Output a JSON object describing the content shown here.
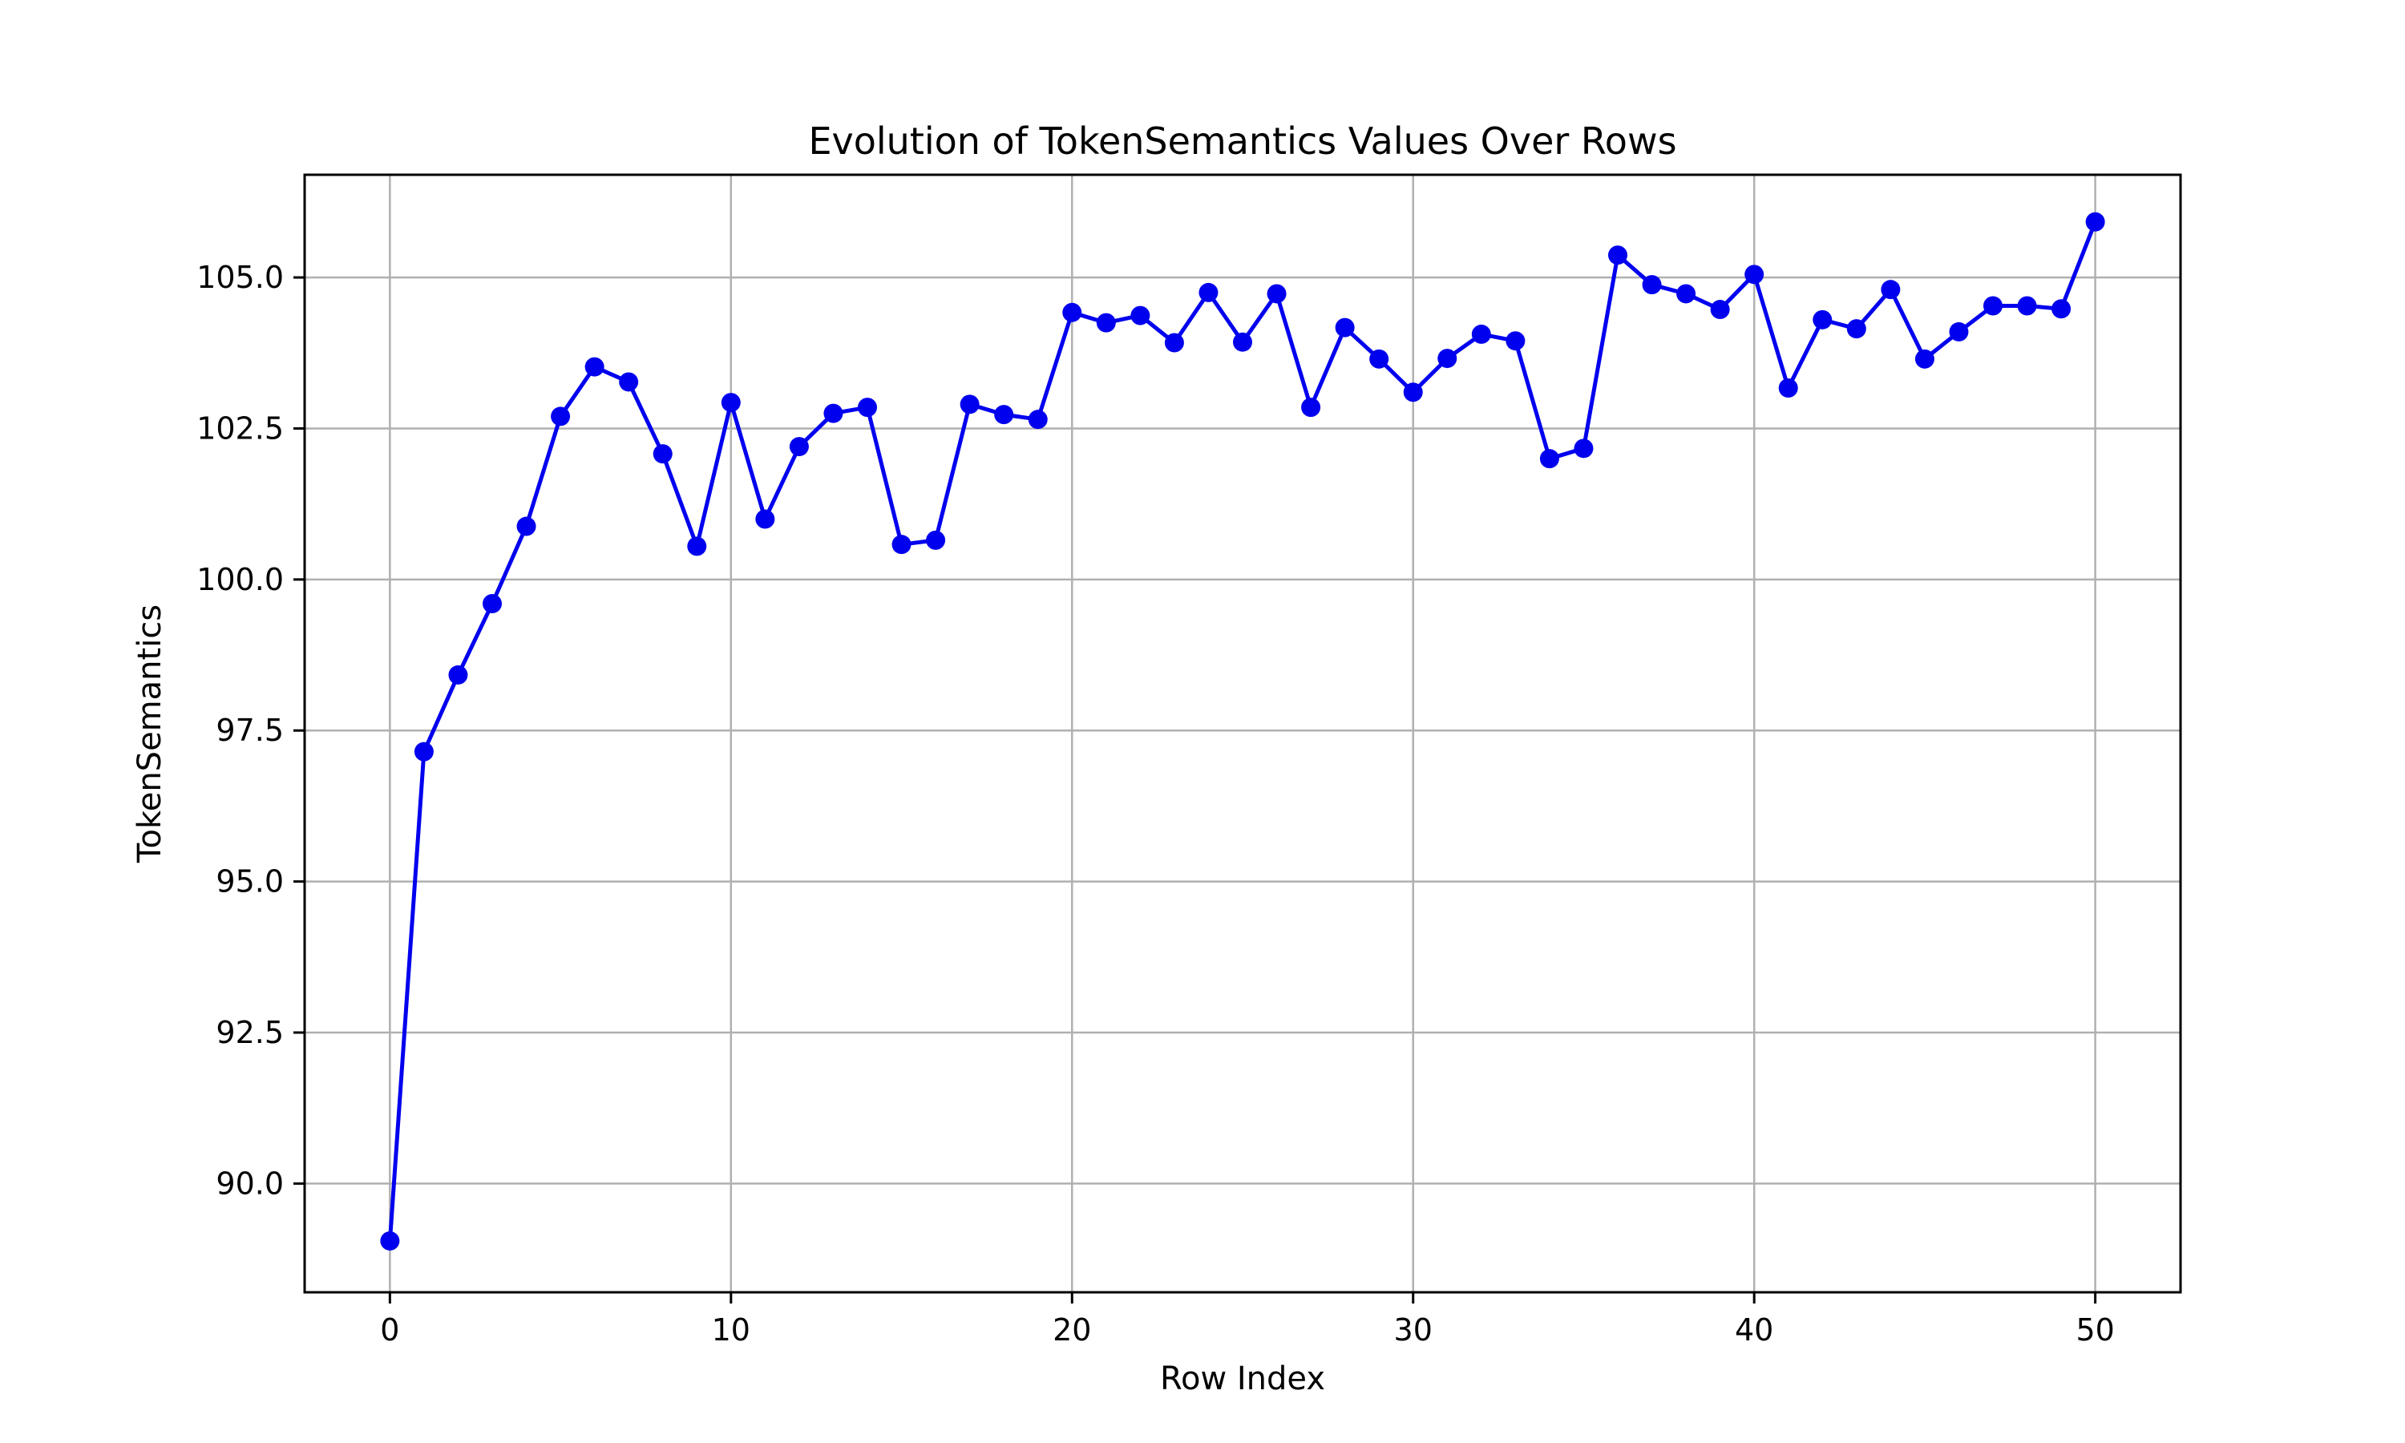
{
  "chart_data": {
    "type": "line",
    "title": "Evolution of TokenSemantics Values Over Rows",
    "xlabel": "Row Index",
    "ylabel": "TokenSemantics",
    "xlim": [
      -2.5,
      52.5
    ],
    "ylim": [
      88.2,
      106.7
    ],
    "xticks": [
      0,
      10,
      20,
      30,
      40,
      50
    ],
    "xtick_labels": [
      "0",
      "10",
      "20",
      "30",
      "40",
      "50"
    ],
    "yticks": [
      90.0,
      92.5,
      95.0,
      97.5,
      100.0,
      102.5,
      105.0
    ],
    "ytick_labels": [
      "90.0",
      "92.5",
      "95.0",
      "97.5",
      "100.0",
      "102.5",
      "105.0"
    ],
    "grid": true,
    "series": [
      {
        "color": "#0000ee",
        "marker": "circle",
        "x": [
          0,
          1,
          2,
          3,
          4,
          5,
          6,
          7,
          8,
          9,
          10,
          11,
          12,
          13,
          14,
          15,
          16,
          17,
          18,
          19,
          20,
          21,
          22,
          23,
          24,
          25,
          26,
          27,
          28,
          29,
          30,
          31,
          32,
          33,
          34,
          35,
          36,
          37,
          38,
          39,
          40,
          41,
          42,
          43,
          44,
          45,
          46,
          47,
          48,
          49,
          50
        ],
        "y": [
          89.05,
          97.15,
          98.42,
          99.6,
          100.88,
          102.7,
          103.52,
          103.27,
          102.08,
          100.55,
          102.93,
          101.0,
          102.2,
          102.75,
          102.85,
          100.58,
          100.65,
          102.9,
          102.73,
          102.65,
          104.42,
          104.25,
          104.37,
          103.92,
          104.75,
          103.93,
          104.73,
          102.85,
          104.17,
          103.65,
          103.1,
          103.66,
          104.06,
          103.95,
          102.0,
          102.17,
          105.37,
          104.88,
          104.73,
          104.47,
          105.05,
          103.17,
          104.3,
          104.15,
          104.8,
          103.65,
          104.1,
          104.53,
          104.53,
          104.48,
          105.92
        ]
      }
    ]
  }
}
